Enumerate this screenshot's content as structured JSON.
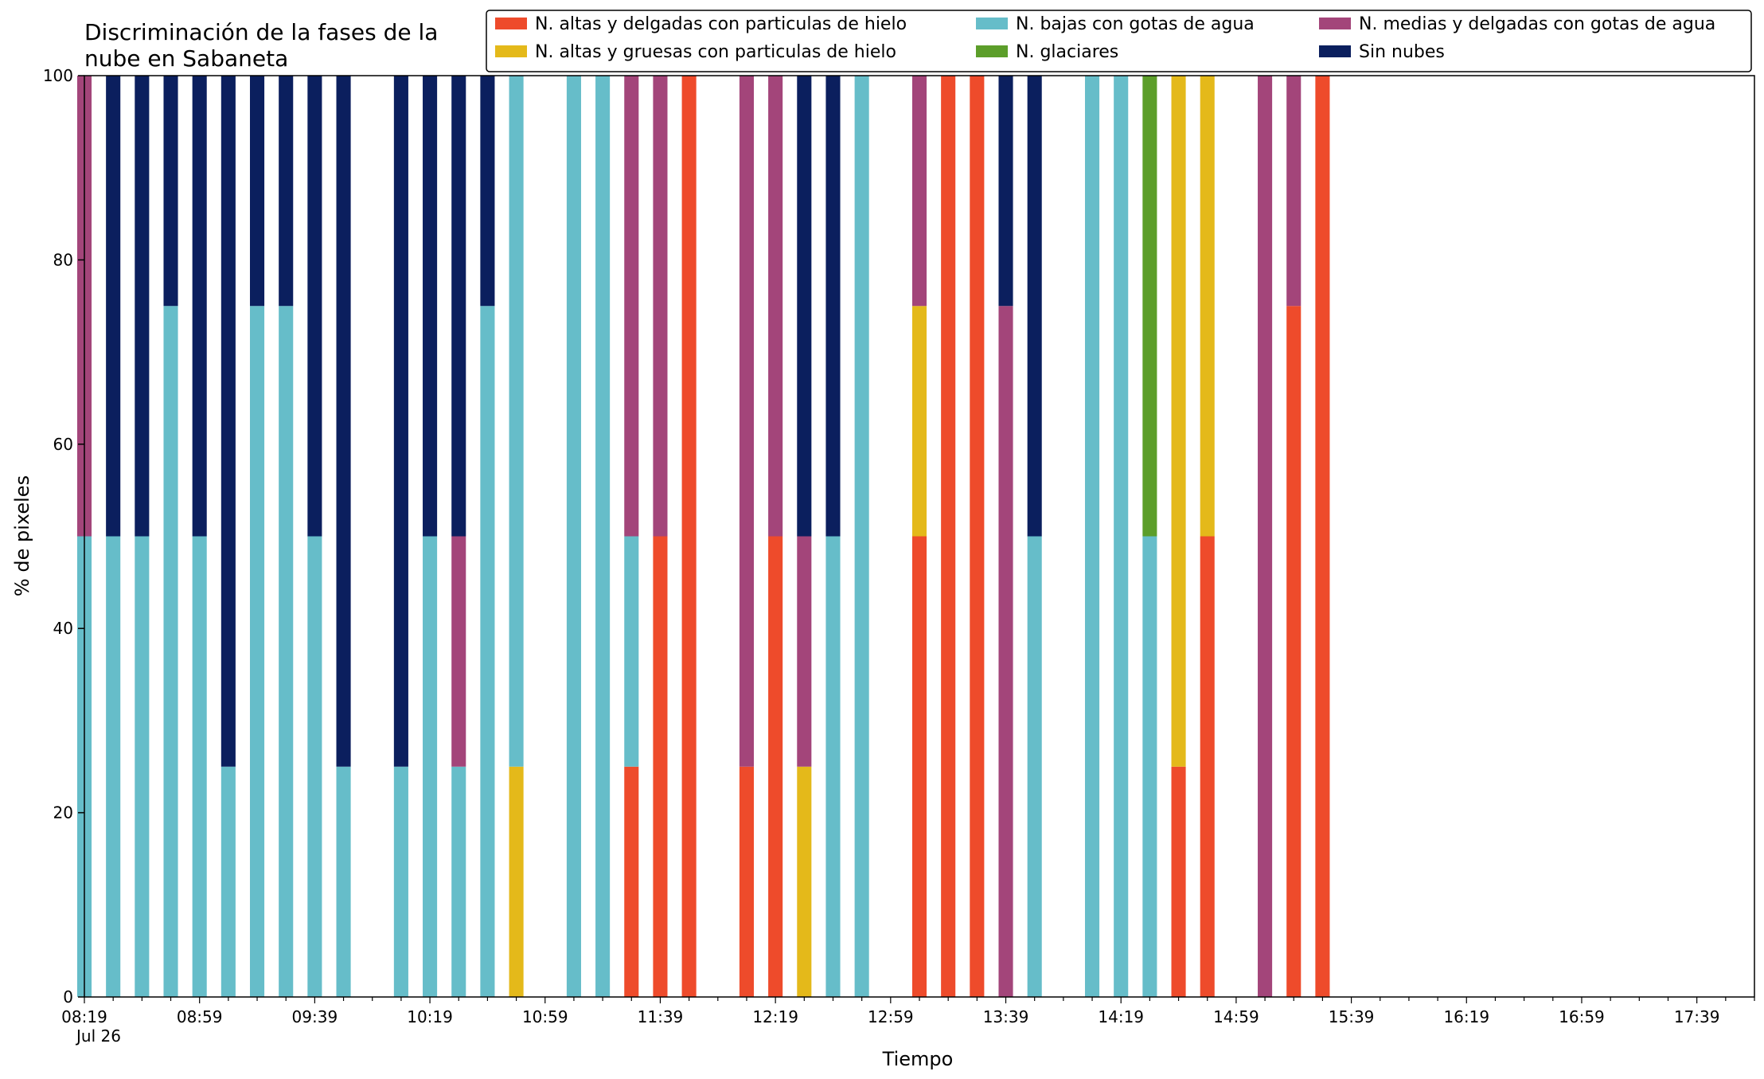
{
  "chart_data": {
    "type": "bar",
    "stacked": true,
    "title_lines": [
      "Discriminación de la fases de la",
      "nube en Sabaneta"
    ],
    "xlabel": "Tiempo",
    "ylabel": "% de pixeles",
    "ylim": [
      0,
      100
    ],
    "yticks": [
      0,
      20,
      40,
      60,
      80,
      100
    ],
    "date_label": "Jul 26",
    "x_start": "08:19",
    "x_end": "17:59",
    "bar_interval_minutes": 10,
    "xtick_labels": [
      "08:19",
      "08:59",
      "09:39",
      "10:19",
      "10:59",
      "11:39",
      "12:19",
      "12:59",
      "13:39",
      "14:19",
      "14:59",
      "15:39",
      "16:19",
      "16:59",
      "17:39"
    ],
    "grid": false,
    "legend_position": "top-right",
    "times": [
      "08:19",
      "08:29",
      "08:39",
      "08:49",
      "08:59",
      "09:09",
      "09:19",
      "09:29",
      "09:39",
      "09:49",
      "10:09",
      "10:19",
      "10:29",
      "10:39",
      "10:49",
      "11:09",
      "11:19",
      "11:29",
      "11:39",
      "11:49",
      "12:09",
      "12:19",
      "12:29",
      "12:39",
      "12:49",
      "13:09",
      "13:19",
      "13:29",
      "13:39",
      "13:49",
      "14:09",
      "14:19",
      "14:29",
      "14:39",
      "14:49",
      "15:09",
      "15:19",
      "15:29"
    ],
    "series": [
      {
        "name": "N. altas y delgadas con particulas de hielo",
        "color": "#ee4b2b",
        "values": [
          0,
          0,
          0,
          0,
          0,
          0,
          0,
          0,
          0,
          0,
          0,
          0,
          0,
          0,
          0,
          0,
          0,
          25,
          50,
          100,
          25,
          50,
          0,
          0,
          0,
          50,
          100,
          100,
          0,
          0,
          0,
          0,
          0,
          25,
          50,
          0,
          75,
          100
        ]
      },
      {
        "name": "N. altas y gruesas con particulas de hielo",
        "color": "#e4b91a",
        "values": [
          0,
          0,
          0,
          0,
          0,
          0,
          0,
          0,
          0,
          0,
          0,
          0,
          0,
          0,
          25,
          0,
          0,
          0,
          0,
          0,
          0,
          0,
          25,
          0,
          0,
          25,
          0,
          0,
          0,
          0,
          0,
          0,
          0,
          75,
          50,
          0,
          0,
          0
        ]
      },
      {
        "name": "N. bajas con gotas de agua",
        "color": "#66bdc9",
        "values": [
          50,
          50,
          50,
          75,
          50,
          25,
          75,
          75,
          50,
          25,
          25,
          50,
          25,
          75,
          75,
          100,
          100,
          25,
          0,
          0,
          0,
          0,
          0,
          50,
          100,
          0,
          0,
          0,
          0,
          50,
          100,
          100,
          50,
          0,
          0,
          0,
          0,
          0
        ]
      },
      {
        "name": "N. glaciares",
        "color": "#5c9e2a",
        "values": [
          0,
          0,
          0,
          0,
          0,
          0,
          0,
          0,
          0,
          0,
          0,
          0,
          0,
          0,
          0,
          0,
          0,
          0,
          0,
          0,
          0,
          0,
          0,
          0,
          0,
          0,
          0,
          0,
          0,
          0,
          0,
          0,
          50,
          0,
          0,
          0,
          0,
          0
        ]
      },
      {
        "name": "N. medias y delgadas con gotas de agua",
        "color": "#a3457a",
        "values": [
          50,
          0,
          0,
          0,
          0,
          0,
          0,
          0,
          0,
          0,
          0,
          0,
          25,
          0,
          0,
          0,
          0,
          50,
          50,
          0,
          75,
          50,
          25,
          0,
          0,
          25,
          0,
          0,
          75,
          0,
          0,
          0,
          0,
          0,
          0,
          100,
          25,
          0
        ]
      },
      {
        "name": "Sin nubes",
        "color": "#0b1f5e",
        "values": [
          0,
          50,
          50,
          25,
          50,
          75,
          25,
          25,
          50,
          75,
          75,
          50,
          50,
          25,
          0,
          0,
          0,
          0,
          0,
          0,
          0,
          0,
          50,
          50,
          0,
          0,
          0,
          0,
          25,
          50,
          0,
          0,
          0,
          0,
          0,
          0,
          0,
          0
        ]
      }
    ]
  }
}
